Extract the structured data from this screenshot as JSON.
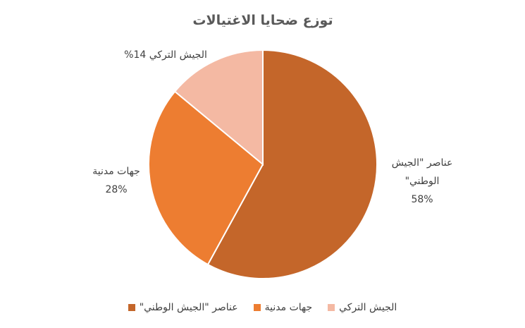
{
  "chart_data": {
    "type": "pie",
    "title": "توزع ضحايا الاغتيالات",
    "categories": [
      "عناصر \"الجيش الوطني\"",
      "جهات مدنية",
      "الجيش التركي"
    ],
    "values": [
      58,
      28,
      14
    ],
    "value_labels": [
      "58%",
      "28%",
      "14%"
    ],
    "colors": [
      "#c4662a",
      "#ed7d31",
      "#f4b9a3"
    ]
  }
}
